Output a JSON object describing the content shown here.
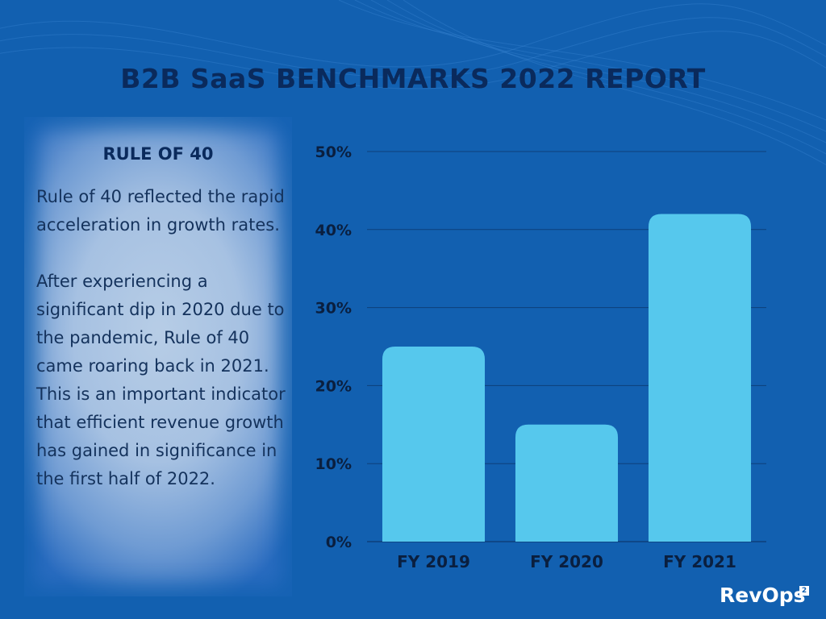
{
  "title": "B2B SaaS BENCHMARKS 2022 REPORT",
  "panel": {
    "heading": "RULE OF 40",
    "paragraph1": "Rule of 40 reflected the rapid acceleration in growth rates.",
    "paragraph2": "After experiencing a significant dip in 2020 due to the pandemic, Rule of 40 came roaring back in 2021. This is an important indicator that efficient revenue growth has gained in significance in the first half of 2022."
  },
  "logo": {
    "text": "RevOps",
    "badge": "2"
  },
  "colors": {
    "background": "#1260b0",
    "bar": "#56c8ed",
    "title": "#0a2a5c"
  },
  "chart_data": {
    "type": "bar",
    "categories": [
      "FY 2019",
      "FY 2020",
      "FY 2021"
    ],
    "values": [
      25,
      15,
      42
    ],
    "title": "",
    "xlabel": "",
    "ylabel": "",
    "ylim": [
      0,
      50
    ],
    "yticks": [
      "0%",
      "10%",
      "20%",
      "30%",
      "40%",
      "50%"
    ],
    "grid": true
  }
}
